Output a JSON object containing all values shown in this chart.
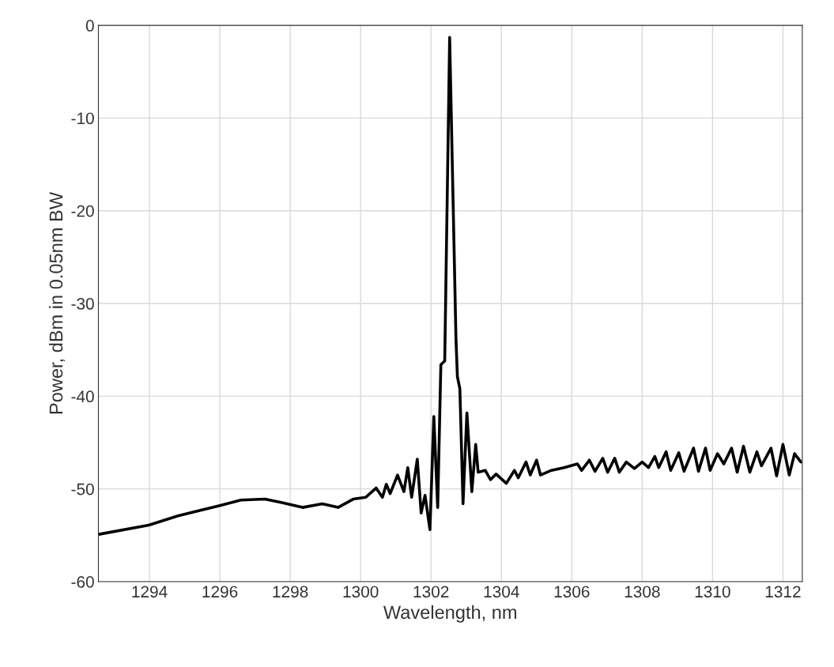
{
  "chart_data": {
    "type": "line",
    "xlabel": "Wavelength, nm",
    "ylabel": "Power, dBm in 0.05nm BW",
    "xlim": [
      1292.55,
      1312.55
    ],
    "ylim": [
      -60,
      0
    ],
    "xticks": [
      1294,
      1296,
      1298,
      1300,
      1302,
      1304,
      1306,
      1308,
      1310,
      1312
    ],
    "yticks": [
      -60,
      -50,
      -40,
      -30,
      -20,
      -10,
      0
    ],
    "grid": true,
    "series": [
      {
        "color": "#000000",
        "x": [
          1292.56,
          1293.98,
          1294.81,
          1296.0,
          1296.6,
          1297.28,
          1297.79,
          1298.35,
          1298.91,
          1299.36,
          1299.79,
          1300.15,
          1300.44,
          1300.62,
          1300.73,
          1300.84,
          1301.05,
          1301.23,
          1301.34,
          1301.45,
          1301.61,
          1301.72,
          1301.83,
          1301.97,
          1302.08,
          1302.19,
          1302.28,
          1302.39,
          1302.53,
          1302.71,
          1302.75,
          1302.82,
          1302.91,
          1303.02,
          1303.16,
          1303.27,
          1303.34,
          1303.54,
          1303.69,
          1303.85,
          1304.14,
          1304.37,
          1304.48,
          1304.7,
          1304.82,
          1305.0,
          1305.11,
          1305.42,
          1305.78,
          1306.16,
          1306.28,
          1306.5,
          1306.66,
          1306.88,
          1307.02,
          1307.22,
          1307.35,
          1307.55,
          1307.78,
          1308.0,
          1308.18,
          1308.36,
          1308.47,
          1308.68,
          1308.81,
          1309.04,
          1309.19,
          1309.46,
          1309.6,
          1309.8,
          1309.93,
          1310.14,
          1310.32,
          1310.54,
          1310.7,
          1310.88,
          1311.06,
          1311.26,
          1311.39,
          1311.66,
          1311.82,
          1312.0,
          1312.18,
          1312.33,
          1312.51
        ],
        "values": [
          -54.9,
          -53.9,
          -52.9,
          -51.8,
          -51.2,
          -51.1,
          -51.5,
          -52.0,
          -51.6,
          -52.0,
          -51.1,
          -50.9,
          -49.9,
          -50.9,
          -49.5,
          -50.5,
          -48.5,
          -50.3,
          -47.7,
          -50.9,
          -46.8,
          -52.6,
          -50.7,
          -54.4,
          -42.2,
          -52.0,
          -36.6,
          -36.2,
          -1.3,
          -33.9,
          -37.9,
          -39.2,
          -51.6,
          -41.8,
          -50.3,
          -45.2,
          -48.2,
          -48.0,
          -49.0,
          -48.4,
          -49.4,
          -48.0,
          -48.8,
          -47.1,
          -48.5,
          -46.9,
          -48.5,
          -48.0,
          -47.7,
          -47.3,
          -48.0,
          -46.9,
          -48.1,
          -46.7,
          -48.2,
          -46.7,
          -48.2,
          -47.1,
          -47.8,
          -47.1,
          -47.7,
          -46.5,
          -47.7,
          -46.0,
          -48.0,
          -46.1,
          -48.1,
          -45.6,
          -48.1,
          -45.6,
          -48.0,
          -46.2,
          -47.3,
          -45.6,
          -48.2,
          -45.4,
          -48.2,
          -46.0,
          -47.5,
          -45.6,
          -48.6,
          -45.2,
          -48.5,
          -46.2,
          -47.1
        ]
      }
    ]
  }
}
